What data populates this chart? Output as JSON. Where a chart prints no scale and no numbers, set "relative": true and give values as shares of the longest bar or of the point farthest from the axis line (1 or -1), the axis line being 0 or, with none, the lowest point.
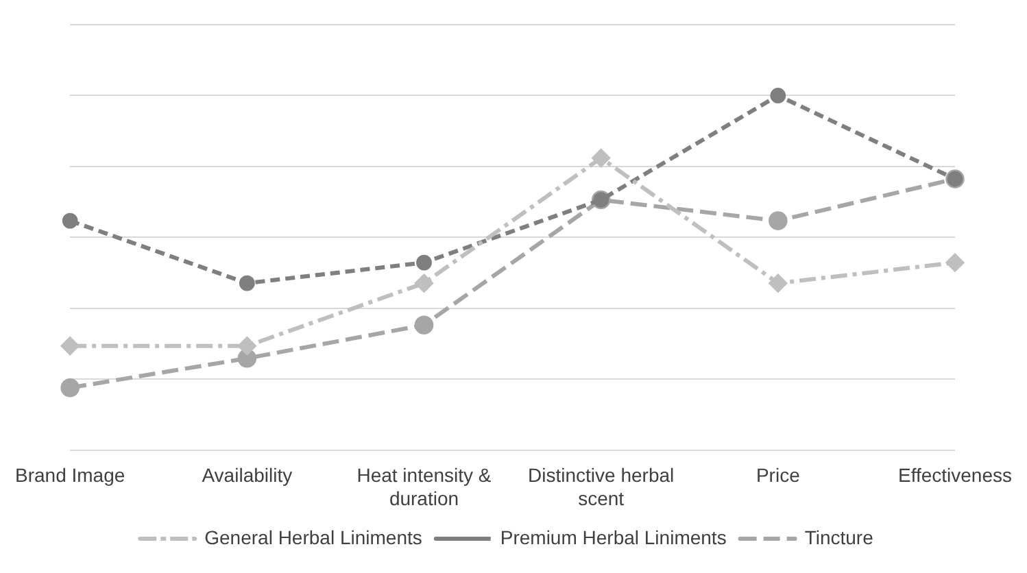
{
  "chart_data": {
    "type": "line",
    "relative": true,
    "categories": [
      "Brand Image",
      "Availability",
      "Heat intensity & duration",
      "Distinctive herbal scent",
      "Price",
      "Effectiveness"
    ],
    "series": [
      {
        "name": "General Herbal Liniments",
        "color": "#bfbfbf",
        "line_style": "dashdot",
        "marker": "diamond",
        "values": [
          0.294,
          0.294,
          0.471,
          0.824,
          0.471,
          0.529
        ]
      },
      {
        "name": "Premium Herbal Liniments",
        "color": "#7f7f7f",
        "line_style": "dashed",
        "marker": "circle",
        "values": [
          0.647,
          0.471,
          0.529,
          0.706,
          1,
          0.765
        ]
      },
      {
        "name": "Tincture",
        "color": "#a6a6a6",
        "line_style": "longdash",
        "marker": "circle",
        "values": [
          0.176,
          0.259,
          0.353,
          0.706,
          0.647,
          0.765
        ]
      }
    ],
    "grid": "y",
    "legend": "bottom"
  }
}
